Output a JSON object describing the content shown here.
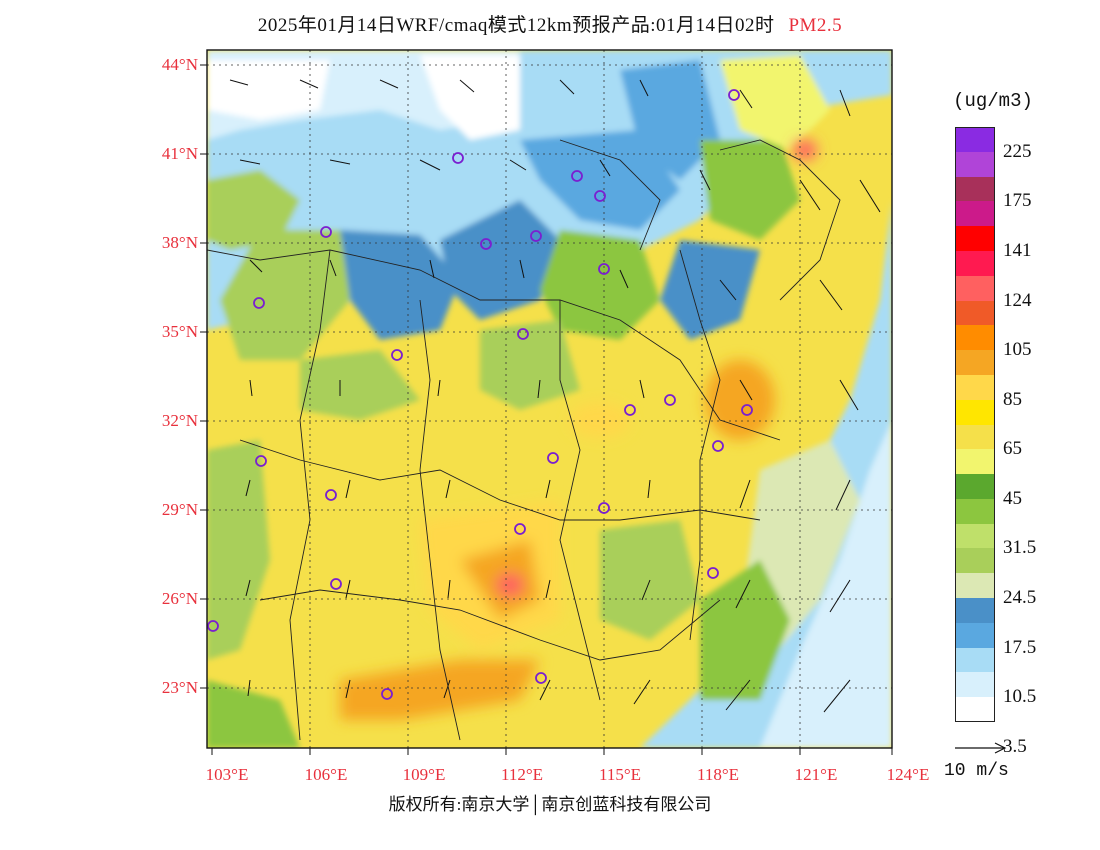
{
  "title": {
    "main": "2025年01月14日WRF/cmaq模式12km预报产品:01月14日02时",
    "variable": "PM2.5"
  },
  "axes": {
    "lat_labels": [
      "44°N",
      "41°N",
      "38°N",
      "35°N",
      "32°N",
      "29°N",
      "26°N",
      "23°N"
    ],
    "lon_labels": [
      "103°E",
      "106°E",
      "109°E",
      "112°E",
      "115°E",
      "118°E",
      "121°E",
      "124°E"
    ]
  },
  "legend": {
    "unit": "(ug/m3)",
    "labels": [
      "225",
      "175",
      "141",
      "124",
      "105",
      "85",
      "65",
      "45",
      "31.5",
      "24.5",
      "17.5",
      "10.5",
      "3.5"
    ],
    "colors": [
      "#8a2be2",
      "#b044d8",
      "#a8305a",
      "#cc1a8a",
      "#ff0000",
      "#ff1a50",
      "#ff6060",
      "#f05a28",
      "#ff8c00",
      "#f5a623",
      "#ffd84a",
      "#ffe600",
      "#f5e04a",
      "#f2f56e",
      "#5ba82e",
      "#8cc63f",
      "#bfe06a",
      "#a9cf5a",
      "#dce8b4",
      "#4a90c8",
      "#5aa8e0",
      "#a8dcf5",
      "#d8f0fc",
      "#ffffff"
    ]
  },
  "vector": {
    "label": "10 m/s"
  },
  "copyright": "版权所有:南京大学│南京创蓝科技有限公司"
}
